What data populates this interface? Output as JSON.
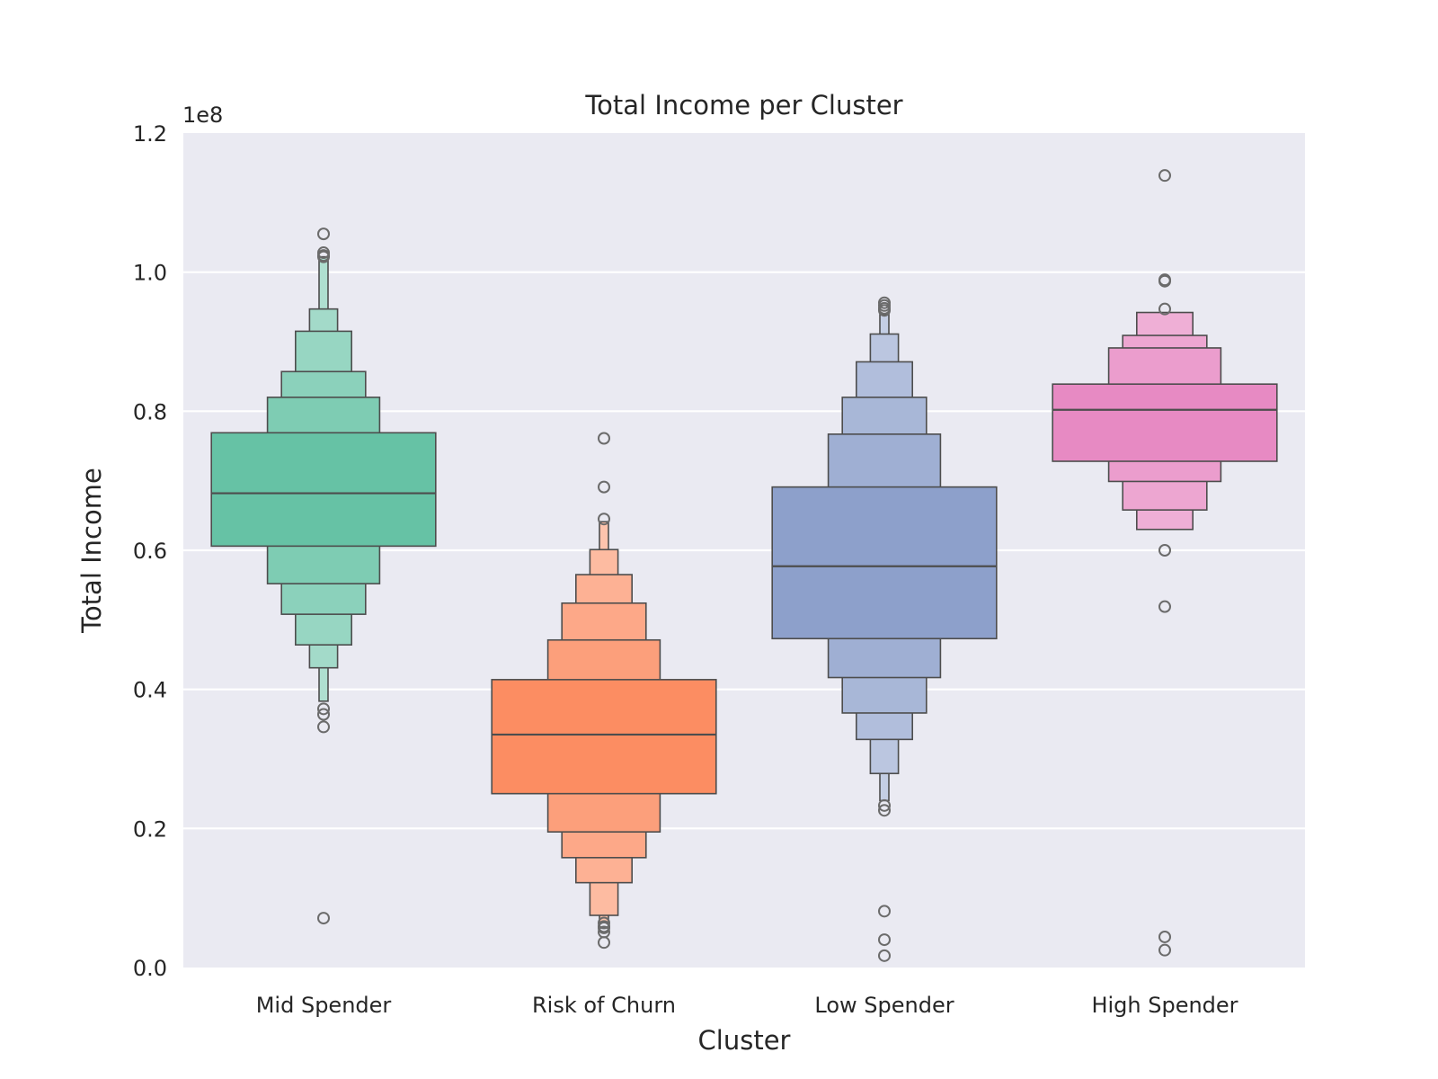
{
  "chart_data": {
    "type": "boxen",
    "title": "Total Income per Cluster",
    "xlabel": "Cluster",
    "ylabel": "Total Income",
    "y_multiplier_label": "1e8",
    "ylim": [
      0,
      1.2
    ],
    "yticks": [
      0.0,
      0.2,
      0.4,
      0.6,
      0.8,
      1.0,
      1.2
    ],
    "ytick_labels": [
      "0.0",
      "0.2",
      "0.4",
      "0.6",
      "0.8",
      "1.0",
      "1.2"
    ],
    "grid": true,
    "categories": [
      "Mid Spender",
      "Risk of Churn",
      "Low Spender",
      "High Spender"
    ],
    "series": [
      {
        "category": "Mid Spender",
        "color": "#66c2a5",
        "median": 0.682,
        "levels": [
          [
            0.606,
            0.769
          ],
          [
            0.552,
            0.82
          ],
          [
            0.508,
            0.857
          ],
          [
            0.464,
            0.915
          ],
          [
            0.431,
            0.947
          ],
          [
            0.383,
            1.022
          ]
        ],
        "outliers": [
          1.055,
          1.028,
          1.024,
          1.022,
          0.372,
          0.364,
          0.346,
          0.071
        ]
      },
      {
        "category": "Risk of Churn",
        "color": "#fc8d62",
        "median": 0.335,
        "levels": [
          [
            0.25,
            0.414
          ],
          [
            0.195,
            0.471
          ],
          [
            0.158,
            0.524
          ],
          [
            0.122,
            0.565
          ],
          [
            0.075,
            0.601
          ],
          [
            0.065,
            0.641
          ]
        ],
        "outliers": [
          0.761,
          0.691,
          0.645,
          0.064,
          0.059,
          0.057,
          0.051,
          0.036
        ]
      },
      {
        "category": "Low Spender",
        "color": "#8da0cb",
        "median": 0.577,
        "levels": [
          [
            0.473,
            0.691
          ],
          [
            0.417,
            0.767
          ],
          [
            0.366,
            0.82
          ],
          [
            0.328,
            0.871
          ],
          [
            0.279,
            0.911
          ],
          [
            0.24,
            0.939
          ]
        ],
        "outliers": [
          0.956,
          0.952,
          0.948,
          0.945,
          0.233,
          0.226,
          0.081,
          0.04,
          0.017
        ]
      },
      {
        "category": "High Spender",
        "color": "#e78ac3",
        "median": 0.802,
        "levels": [
          [
            0.728,
            0.839
          ],
          [
            0.699,
            0.891
          ],
          [
            0.658,
            0.909
          ],
          [
            0.63,
            0.942
          ]
        ],
        "outliers": [
          1.139,
          0.989,
          0.987,
          0.947,
          0.6,
          0.519,
          0.044,
          0.025
        ]
      }
    ]
  }
}
